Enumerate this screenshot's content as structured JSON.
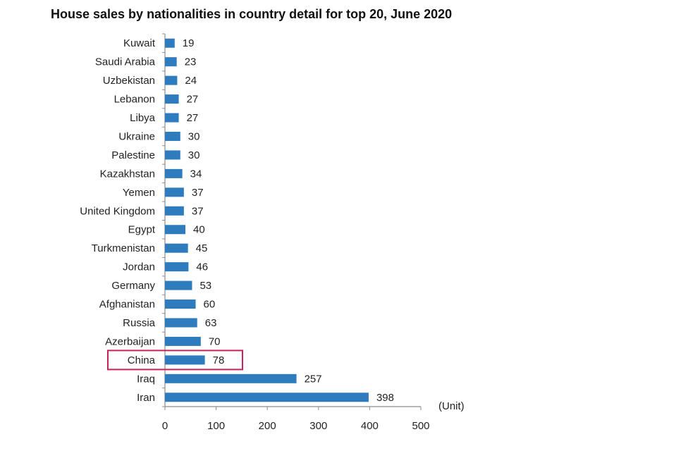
{
  "chart_data": {
    "type": "bar",
    "orientation": "horizontal",
    "title": "House sales by nationalities in country detail for top 20, June 2020",
    "unit_label": "(Unit)",
    "categories": [
      "Kuwait",
      "Saudi Arabia",
      "Uzbekistan",
      "Lebanon",
      "Libya",
      "Ukraine",
      "Palestine",
      "Kazakhstan",
      "Yemen",
      "United Kingdom",
      "Egypt",
      "Turkmenistan",
      "Jordan",
      "Germany",
      "Afghanistan",
      "Russia",
      "Azerbaijan",
      "China",
      "Iraq",
      "Iran"
    ],
    "values": [
      19,
      23,
      24,
      27,
      27,
      30,
      30,
      34,
      37,
      37,
      40,
      45,
      46,
      53,
      60,
      63,
      70,
      78,
      257,
      398
    ],
    "xlim": [
      0,
      500
    ],
    "xticks": [
      0,
      100,
      200,
      300,
      400,
      500
    ],
    "grid": false,
    "legend": "none",
    "highlighted_category": "China",
    "colors": {
      "bar": "#2e7cbd",
      "axis": "#8c8c8c",
      "highlight_box": "#c4245a",
      "text": "#222222"
    }
  }
}
